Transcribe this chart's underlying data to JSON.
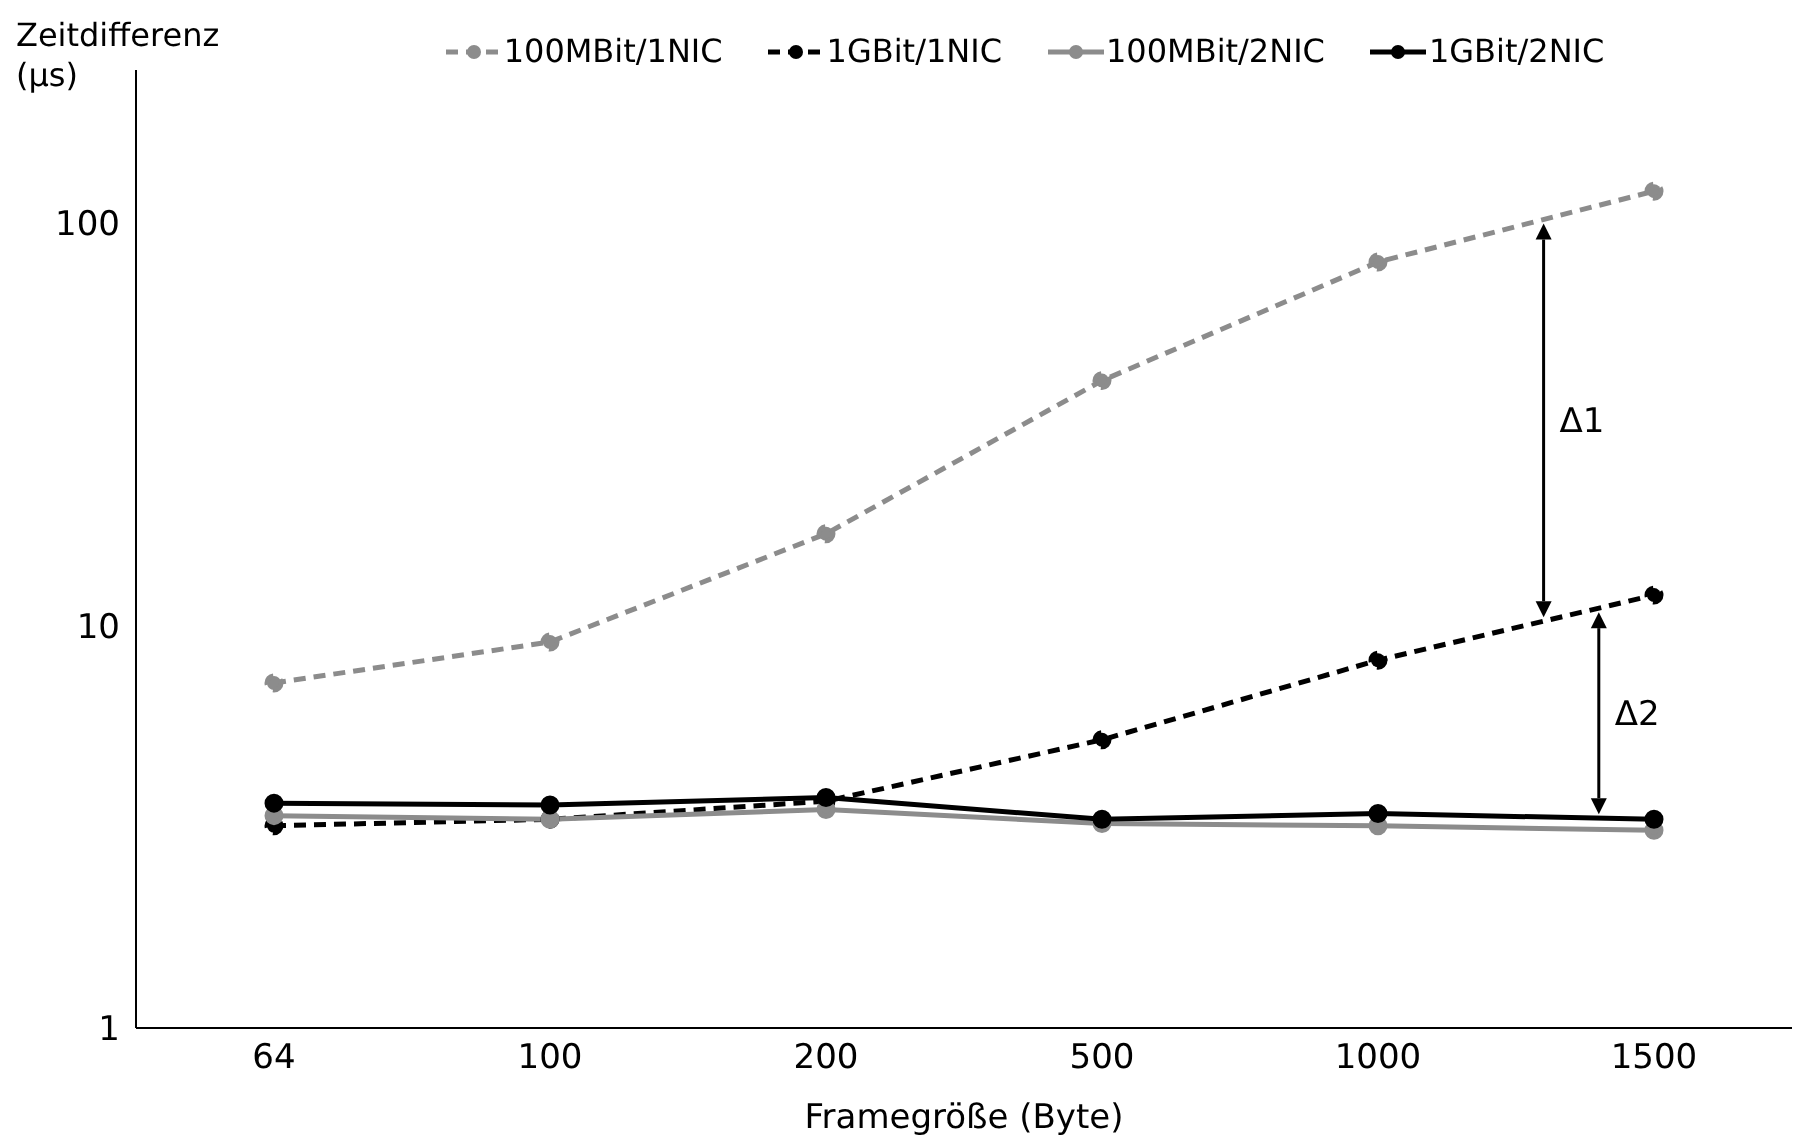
{
  "chart_data": {
    "type": "line",
    "xlabel": "Framegröße (Byte)",
    "ylabel": "Zeitdifferenz (µs)",
    "categories": [
      "64",
      "100",
      "200",
      "500",
      "1000",
      "1500"
    ],
    "series": [
      {
        "name": "100MBit/1NIC",
        "color": "#8c8c8c",
        "line_style": "dashed",
        "values": [
          7.2,
          9.1,
          16.9,
          40.6,
          80,
          120
        ]
      },
      {
        "name": "1GBit/1NIC",
        "color": "#000000",
        "line_style": "dashed",
        "values": [
          3.18,
          3.3,
          3.66,
          5.2,
          8.2,
          11.9
        ]
      },
      {
        "name": "100MBit/2NIC",
        "color": "#8c8c8c",
        "line_style": "solid",
        "values": [
          3.37,
          3.3,
          3.49,
          3.22,
          3.18,
          3.1
        ]
      },
      {
        "name": "1GBit/2NIC",
        "color": "#000000",
        "line_style": "solid",
        "values": [
          3.62,
          3.58,
          3.74,
          3.3,
          3.41,
          3.3
        ]
      }
    ],
    "log": "y",
    "ylim": [
      1,
      240
    ],
    "yticks": [
      1,
      10,
      100
    ],
    "grid": false,
    "legend": "top",
    "marker": "circle",
    "annotations": [
      "Δ1",
      "Δ2"
    ]
  }
}
